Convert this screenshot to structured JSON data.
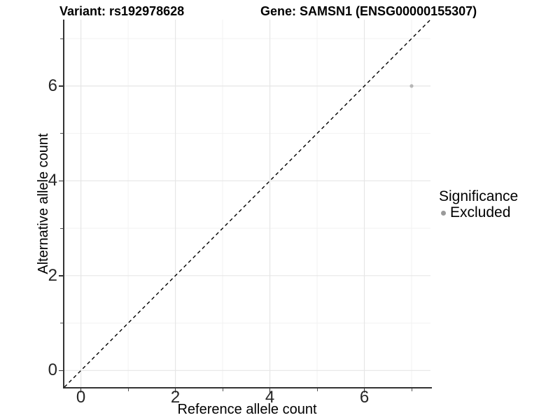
{
  "chart_data": {
    "type": "scatter",
    "title_variant": "Variant: rs192978628",
    "title_gene": "Gene: SAMSN1 (ENSG00000155307)",
    "xlabel": "Reference allele count",
    "ylabel": "Alternative allele count",
    "xlim": [
      -0.35,
      7.4
    ],
    "ylim": [
      -0.35,
      7.4
    ],
    "x_ticks": [
      0,
      2,
      4,
      6
    ],
    "y_ticks": [
      0,
      2,
      4,
      6
    ],
    "x_minor_ticks": [
      1,
      3,
      5,
      7
    ],
    "y_minor_ticks": [
      1,
      3,
      5,
      7
    ],
    "grid": true,
    "points": [
      {
        "x": 7,
        "y": 6,
        "series": "Excluded"
      }
    ],
    "reference_line": {
      "kind": "identity",
      "style": "dashed",
      "color": "#000000"
    },
    "legend": {
      "position": "right",
      "title": "Significance",
      "entries": [
        {
          "label": "Excluded",
          "marker": "circle",
          "color": "#9a9a9a"
        }
      ]
    },
    "colors": {
      "background": "#ffffff",
      "point": "#b6b6b6",
      "grid_major": "#e6e6e6",
      "grid_minor": "#f2f2f2",
      "axis_line": "#333333",
      "tick_text": "#262626"
    }
  }
}
